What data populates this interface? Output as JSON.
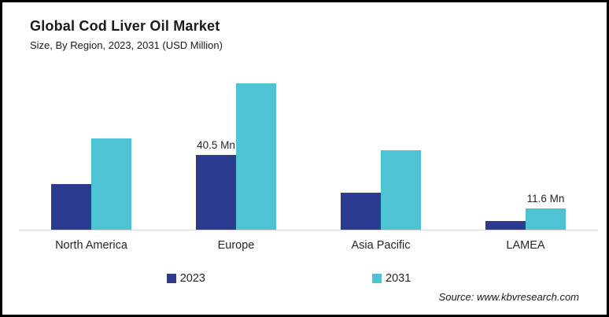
{
  "header": {
    "title": "Global Cod Liver Oil Market",
    "subtitle": "Size, By Region, 2023, 2031 (USD Million)"
  },
  "source": "Source: www.kbvresearch.com",
  "colors": {
    "series_2023": "#2A3B8F",
    "series_2031": "#4EC3D3",
    "axis_line": "#D9D9D9",
    "border": "#000000",
    "background": "#FFFFFF"
  },
  "legend": [
    {
      "label": "2023",
      "color": "#2A3B8F"
    },
    {
      "label": "2031",
      "color": "#4EC3D3"
    }
  ],
  "chart_data": {
    "type": "bar",
    "title": "Global Cod Liver Oil Market",
    "subtitle": "Size, By Region, 2023, 2031 (USD Million)",
    "unit": "USD Million",
    "categories": [
      "North America",
      "Europe",
      "Asia Pacific",
      "LAMEA"
    ],
    "series": [
      {
        "name": "2023",
        "color": "#2A3B8F",
        "values": [
          24.5,
          40.5,
          20,
          4.8
        ],
        "labels": [
          "",
          "40.5 Mn",
          "",
          ""
        ]
      },
      {
        "name": "2031",
        "color": "#4EC3D3",
        "values": [
          49.5,
          79,
          43,
          11.6
        ],
        "labels": [
          "",
          "",
          "",
          "11.6 Mn"
        ]
      }
    ],
    "annotations": [
      "40.5 Mn",
      "11.6 Mn"
    ],
    "ylim": [
      0,
      83
    ],
    "grid": false,
    "y_axis_visible": false,
    "legend_position": "bottom"
  }
}
